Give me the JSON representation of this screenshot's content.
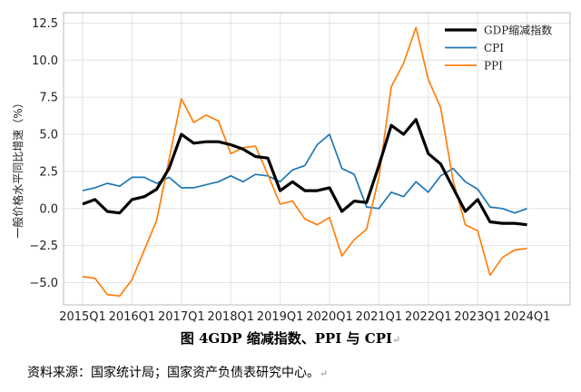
{
  "chart_data": {
    "type": "line",
    "title": "",
    "ylabel": "一般价格水平同比增速（%）",
    "xlabel": "",
    "ylim": [
      -6.5,
      13.2
    ],
    "yticks": [
      -5.0,
      -2.5,
      0.0,
      2.5,
      5.0,
      7.5,
      10.0,
      12.5
    ],
    "ytick_labels": [
      "−5.0",
      "−2.5",
      "0.0",
      "2.5",
      "5.0",
      "7.5",
      "10.0",
      "12.5"
    ],
    "xtick_labels": [
      "2015Q1",
      "2016Q1",
      "2017Q1",
      "2018Q1",
      "2019Q1",
      "2020Q1",
      "2021Q1",
      "2022Q1",
      "2023Q1",
      "2024Q1"
    ],
    "grid": true,
    "legend_position": "top-right",
    "x": [
      "2015Q1",
      "2015Q2",
      "2015Q3",
      "2015Q4",
      "2016Q1",
      "2016Q2",
      "2016Q3",
      "2016Q4",
      "2017Q1",
      "2017Q2",
      "2017Q3",
      "2017Q4",
      "2018Q1",
      "2018Q2",
      "2018Q3",
      "2018Q4",
      "2019Q1",
      "2019Q2",
      "2019Q3",
      "2019Q4",
      "2020Q1",
      "2020Q2",
      "2020Q3",
      "2020Q4",
      "2021Q1",
      "2021Q2",
      "2021Q3",
      "2021Q4",
      "2022Q1",
      "2022Q2",
      "2022Q3",
      "2022Q4",
      "2023Q1",
      "2023Q2",
      "2023Q3",
      "2023Q4",
      "2024Q1"
    ],
    "series": [
      {
        "name": "GDP缩减指数",
        "color": "#000000",
        "values": [
          0.3,
          0.6,
          -0.2,
          -0.3,
          0.6,
          0.8,
          1.3,
          2.7,
          5.0,
          4.4,
          4.5,
          4.5,
          4.3,
          4.0,
          3.5,
          3.4,
          1.2,
          1.8,
          1.2,
          1.2,
          1.4,
          -0.2,
          0.5,
          0.4,
          2.9,
          5.6,
          5.0,
          6.0,
          3.7,
          3.0,
          1.4,
          -0.2,
          0.6,
          -0.9,
          -1.0,
          -1.0,
          -1.1
        ]
      },
      {
        "name": "CPI",
        "color": "#1f77b4",
        "values": [
          1.2,
          1.4,
          1.7,
          1.5,
          2.1,
          2.1,
          1.7,
          2.1,
          1.4,
          1.4,
          1.6,
          1.8,
          2.2,
          1.8,
          2.3,
          2.2,
          1.8,
          2.6,
          2.9,
          4.3,
          5.0,
          2.7,
          2.3,
          0.1,
          0.0,
          1.1,
          0.8,
          1.8,
          1.1,
          2.2,
          2.7,
          1.8,
          1.3,
          0.1,
          0.0,
          -0.3,
          0.0
        ]
      },
      {
        "name": "PPI",
        "color": "#ff7f0e",
        "values": [
          -4.6,
          -4.7,
          -5.8,
          -5.9,
          -4.8,
          -2.8,
          -0.8,
          3.3,
          7.4,
          5.8,
          6.3,
          5.9,
          3.7,
          4.1,
          4.2,
          2.3,
          0.3,
          0.5,
          -0.7,
          -1.1,
          -0.6,
          -3.2,
          -2.1,
          -1.4,
          2.1,
          8.2,
          9.8,
          12.2,
          8.7,
          6.8,
          1.9,
          -1.1,
          -1.5,
          -4.5,
          -3.3,
          -2.8,
          -2.7
        ]
      }
    ]
  },
  "caption": "图 4GDP 缩减指数、PPI 与 CPI",
  "source": "资料来源：国家统计局；国家资产负债表研究中心。"
}
